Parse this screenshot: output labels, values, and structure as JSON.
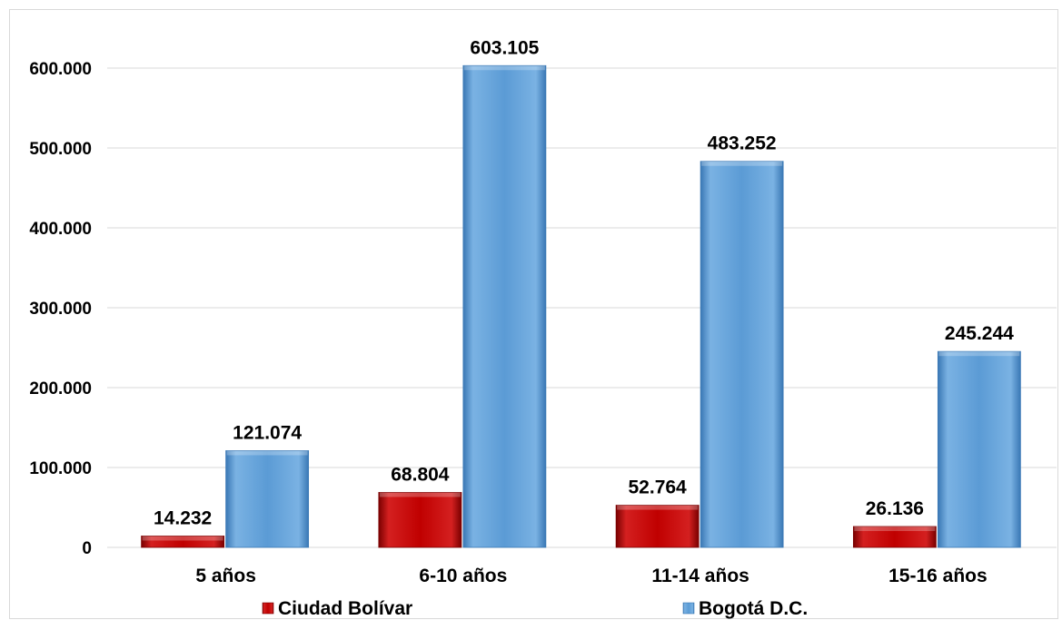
{
  "chart_data": {
    "type": "bar",
    "categories": [
      "5 años",
      "6-10 años",
      "11-14 años",
      "15-16 años"
    ],
    "series": [
      {
        "name": "Ciudad Bolívar",
        "values": [
          14232,
          68804,
          52764,
          26136
        ],
        "labels": [
          "14.232",
          "68.804",
          "52.764",
          "26.136"
        ],
        "color": "#c00000"
      },
      {
        "name": "Bogotá D.C.",
        "values": [
          121074,
          603105,
          483252,
          245244
        ],
        "labels": [
          "121.074",
          "603.105",
          "483.252",
          "245.244"
        ],
        "color": "#5b9bd5"
      }
    ],
    "ylim": [
      0,
      600000
    ],
    "yticks": [
      0,
      100000,
      200000,
      300000,
      400000,
      500000,
      600000
    ],
    "ytick_labels": [
      "0",
      "100.000",
      "200.000",
      "300.000",
      "400.000",
      "500.000",
      "600.000"
    ],
    "grid": true,
    "legend": "bottom",
    "title": "",
    "xlabel": "",
    "ylabel": ""
  }
}
